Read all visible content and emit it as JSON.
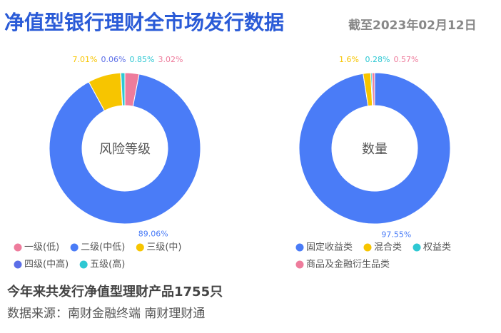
{
  "header": {
    "title": "净值型银行理财全市场发行数据",
    "subtitle": "截至2023年02月12日"
  },
  "chart_data": [
    {
      "type": "pie",
      "center_label": "风险等级",
      "categories": [
        "一级(低)",
        "二级(中低)",
        "三级(中)",
        "四级(中高)",
        "五级(高)"
      ],
      "values": [
        3.02,
        89.06,
        7.01,
        0.06,
        0.85
      ],
      "value_labels": [
        "3.02%",
        "89.06%",
        "7.01%",
        "0.06%",
        "0.85%"
      ],
      "colors": [
        "#ee7c9c",
        "#4a7cf7",
        "#f7c500",
        "#5b6ee8",
        "#2ec8d3"
      ]
    },
    {
      "type": "pie",
      "center_label": "数量",
      "categories": [
        "固定收益类",
        "混合类",
        "权益类",
        "商品及金融衍生品类"
      ],
      "values": [
        97.55,
        1.6,
        0.28,
        0.57
      ],
      "value_labels": [
        "97.55%",
        "1.6%",
        "0.28%",
        "0.57%"
      ],
      "colors": [
        "#4a7cf7",
        "#f7c500",
        "#2ec8d3",
        "#ee7c9c"
      ]
    }
  ],
  "footer": {
    "summary": "今年来共发行净值型理财产品1755只",
    "source": "数据来源：南财金融终端 南财理财通"
  }
}
